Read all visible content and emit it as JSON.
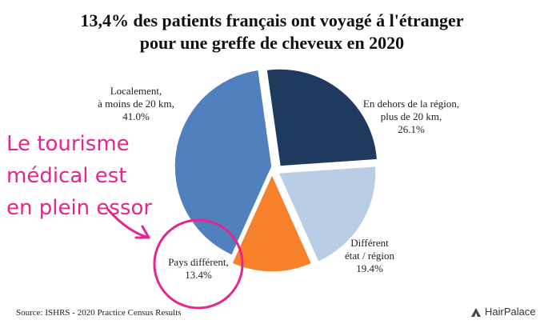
{
  "chart_data": {
    "type": "pie",
    "title": "13,4% des patients français ont voyagé á l'étranger pour une greffe de cheveux en 2020",
    "title_lines": [
      "13,4% des patients français ont voyagé á l'étranger",
      "pour une greffe de cheveux en 2020"
    ],
    "slices": [
      {
        "label": "Localement, à moins de 20 km,",
        "label_lines": [
          "Localement,",
          "à moins de 20 km,"
        ],
        "value": 41.0,
        "value_label": "41.0%",
        "color": "#5080bd"
      },
      {
        "label": "En dehors de la région, plus de 20 km,",
        "label_lines": [
          "En dehors de la région,",
          "plus de 20 km,"
        ],
        "value": 26.1,
        "value_label": "26.1%",
        "color": "#1f3a5e"
      },
      {
        "label": "Différent état / région",
        "label_lines": [
          "Différent",
          "état / région"
        ],
        "value": 19.4,
        "value_label": "19.4%",
        "color": "#b9cde5"
      },
      {
        "label": "Pays différent,",
        "label_lines": [
          "Pays différent,"
        ],
        "value": 13.4,
        "value_label": "13.4%",
        "color": "#f7812b"
      }
    ]
  },
  "callout": {
    "lines": [
      "Le tourisme",
      "médical est",
      "en plein essor"
    ],
    "color": "#e4268e"
  },
  "source": "Source: ISHRS - 2020 Practice Census Results",
  "brand": "HairPalace"
}
